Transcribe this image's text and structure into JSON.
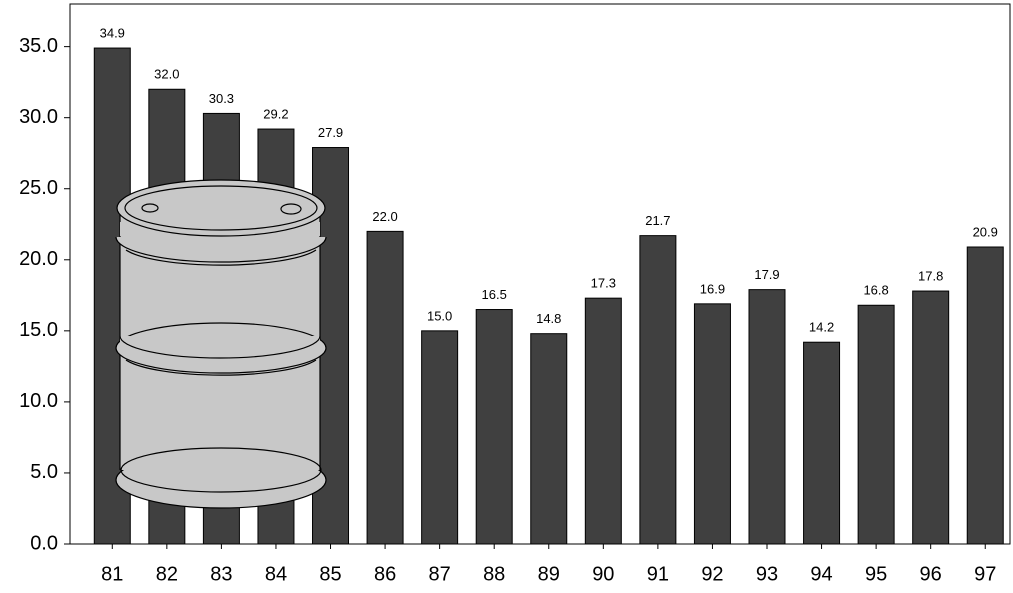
{
  "chart_data": {
    "type": "bar",
    "categories": [
      "81",
      "82",
      "83",
      "84",
      "85",
      "86",
      "87",
      "88",
      "89",
      "90",
      "91",
      "92",
      "93",
      "94",
      "95",
      "96",
      "97"
    ],
    "values": [
      34.9,
      32.0,
      30.3,
      29.2,
      27.9,
      22.0,
      15.0,
      16.5,
      14.8,
      17.3,
      21.7,
      16.9,
      17.9,
      14.2,
      16.8,
      17.8,
      20.9
    ],
    "value_labels": [
      "34.9",
      "32.0",
      "30.3",
      "29.2",
      "27.9",
      "22.0",
      "15.0",
      "16.5",
      "14.8",
      "17.3",
      "21.7",
      "16.9",
      "17.9",
      "14.2",
      "16.8",
      "17.8",
      "20.9"
    ],
    "color": "#404040",
    "ylim": [
      0,
      38
    ],
    "yticks": [
      {
        "value": 0,
        "label": "0.0"
      },
      {
        "value": 5,
        "label": "5.0"
      },
      {
        "value": 10,
        "label": "10.0"
      },
      {
        "value": 15,
        "label": "15.0"
      },
      {
        "value": 20,
        "label": "20.0"
      },
      {
        "value": 25,
        "label": "25.0"
      },
      {
        "value": 30,
        "label": "30.0"
      },
      {
        "value": 35,
        "label": "35.0"
      }
    ],
    "grid": false
  }
}
